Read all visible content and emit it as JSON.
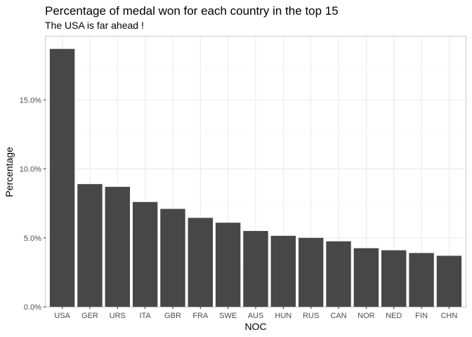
{
  "chart_data": {
    "type": "bar",
    "title": "Percentage of medal won for each country in the top 15",
    "subtitle": "The USA is far ahead !",
    "xlabel": "NOC",
    "ylabel": "Percentage",
    "categories": [
      "USA",
      "GER",
      "URS",
      "ITA",
      "GBR",
      "FRA",
      "SWE",
      "AUS",
      "HUN",
      "RUS",
      "CAN",
      "NOR",
      "NED",
      "FIN",
      "CHN"
    ],
    "values": [
      18.7,
      8.9,
      8.7,
      7.6,
      7.1,
      6.45,
      6.1,
      5.5,
      5.15,
      5.0,
      4.75,
      4.25,
      4.1,
      3.9,
      3.7
    ],
    "ylim": [
      0,
      19.6
    ],
    "yticks": [
      0,
      5,
      10,
      15
    ],
    "ytick_labels": [
      "0.0%",
      "5.0%",
      "10.0%",
      "15.0%"
    ],
    "grid": true,
    "bar_color": "#474747",
    "legend": "none"
  }
}
